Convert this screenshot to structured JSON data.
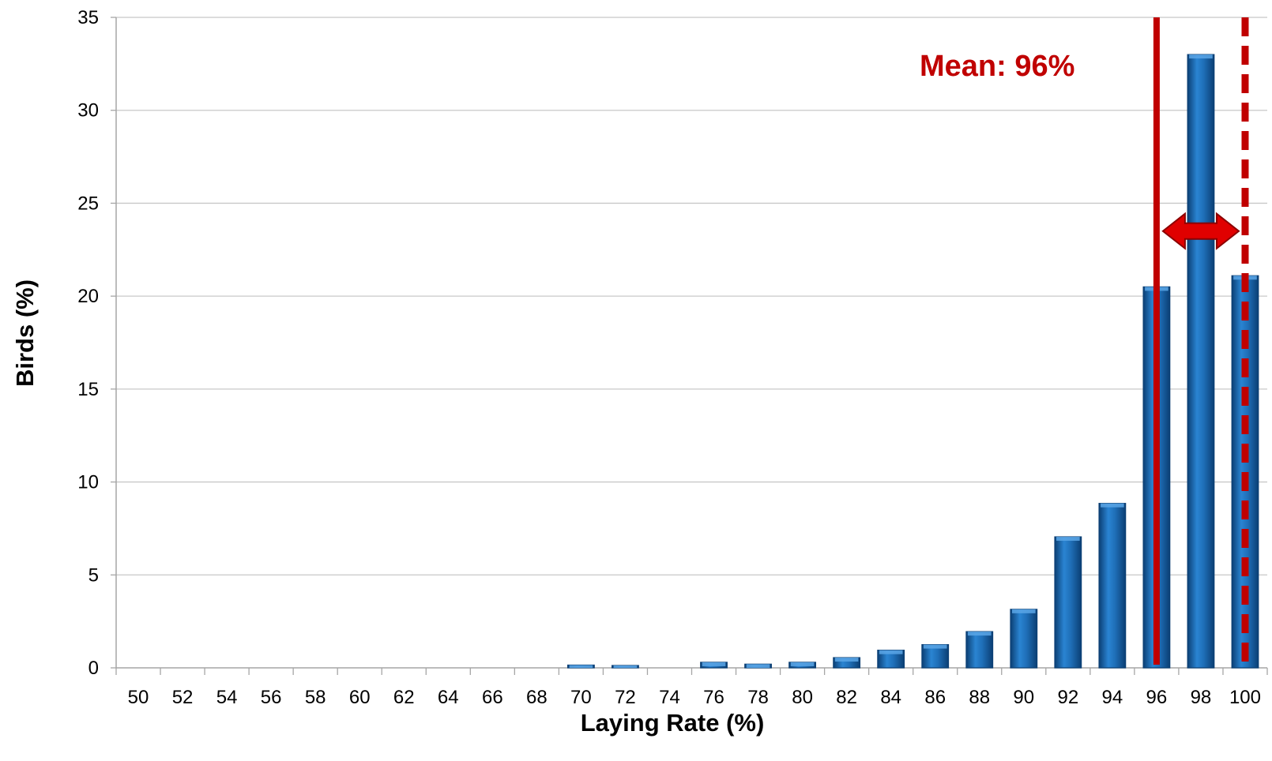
{
  "chart_data": {
    "type": "bar",
    "categories": [
      "50",
      "52",
      "54",
      "56",
      "58",
      "60",
      "62",
      "64",
      "66",
      "68",
      "70",
      "72",
      "74",
      "76",
      "78",
      "80",
      "82",
      "84",
      "86",
      "88",
      "90",
      "92",
      "94",
      "96",
      "98",
      "100"
    ],
    "values": [
      0,
      0,
      0,
      0,
      0,
      0,
      0,
      0,
      0,
      0,
      0.15,
      0.1,
      0,
      0.3,
      0.2,
      0.3,
      0.55,
      0.95,
      1.25,
      1.95,
      3.15,
      7.05,
      8.85,
      20.5,
      33.0,
      21.1
    ],
    "title": "",
    "xlabel": "Laying Rate (%)",
    "ylabel": "Birds (%)",
    "ylim": [
      0,
      35
    ],
    "yticks": [
      0,
      5,
      10,
      15,
      20,
      25,
      30,
      35
    ],
    "grid": true,
    "legend": "none",
    "annotations": {
      "mean_label": "Mean: 96%",
      "mean_line_x": 96,
      "dashed_line_x": 100,
      "double_arrow": {
        "from": 96,
        "to": 100,
        "y": 23.5
      }
    },
    "colors": {
      "bar": "#1F6FB8",
      "bar_dark": "#0B3F74",
      "bar_highlight": "#5BA6E6",
      "annotation": "#C00000",
      "arrow": "#E00000",
      "grid": "#C8C8C8",
      "axis": "#A6A6A6"
    }
  }
}
